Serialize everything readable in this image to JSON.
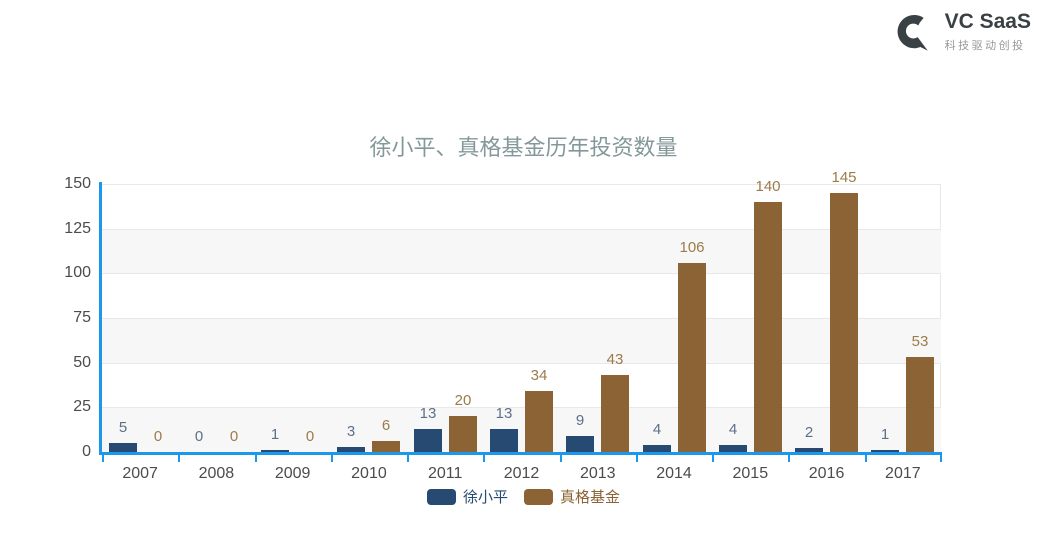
{
  "logo": {
    "name": "VC SaaS",
    "tagline": "科技驱动创投",
    "mark_color": "#3a4144"
  },
  "chart_data": {
    "type": "bar",
    "title": "徐小平、真格基金历年投资数量",
    "categories": [
      "2007",
      "2008",
      "2009",
      "2010",
      "2011",
      "2012",
      "2013",
      "2014",
      "2015",
      "2016",
      "2017"
    ],
    "series": [
      {
        "name": "徐小平",
        "color": "#264a72",
        "label_color": "#5d7089",
        "values": [
          5,
          0,
          1,
          3,
          13,
          13,
          9,
          4,
          4,
          2,
          1
        ]
      },
      {
        "name": "真格基金",
        "color": "#8b6335",
        "label_color": "#9c7b4a",
        "values": [
          0,
          0,
          0,
          6,
          20,
          34,
          43,
          106,
          140,
          145,
          53
        ]
      }
    ],
    "xlabel": "",
    "ylabel": "",
    "ylim": [
      0,
      150
    ],
    "yticks": [
      0,
      25,
      50,
      75,
      100,
      125,
      150
    ],
    "grid": true,
    "legend_position": "bottom",
    "axis_color": "#1b98ec",
    "band_color": "#f7f7f7",
    "grid_color": "#e8e8e8",
    "tick_label_color": "#4c4c4c"
  }
}
